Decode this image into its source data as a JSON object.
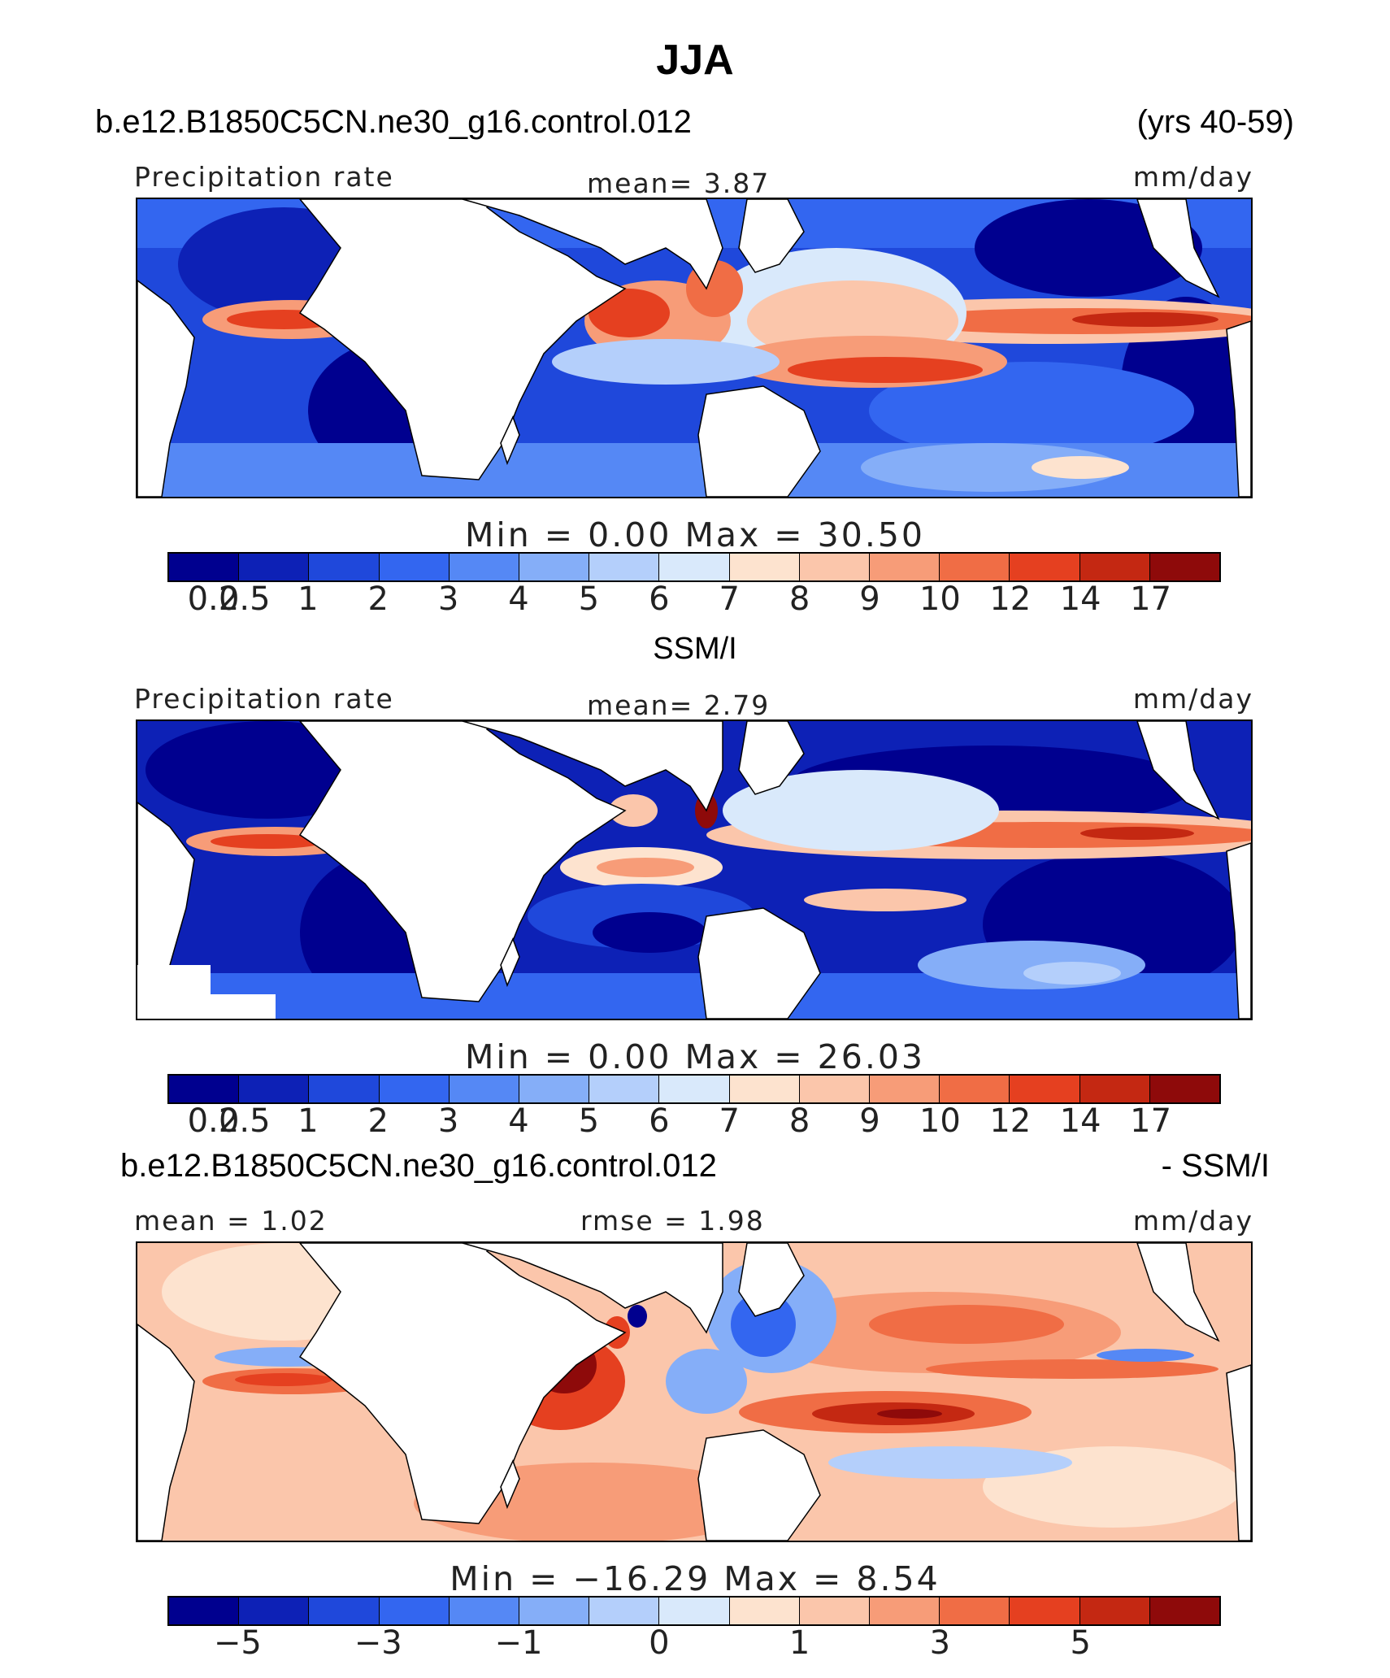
{
  "season": "JJA",
  "header": {
    "case_name": "b.e12.B1850C5CN.ne30_g16.control.012",
    "years": "(yrs 40-59)"
  },
  "panels": [
    {
      "id": "model",
      "variable": "Precipitation rate",
      "stat_text": "mean=    3.87",
      "units": "mm/day",
      "minmax_text": "Min  =     0.00  Max  =    30.50",
      "colorbar": {
        "labels": [
          "0.2",
          "0.5",
          "1",
          "2",
          "3",
          "4",
          "5",
          "6",
          "7",
          "8",
          "9",
          "10",
          "12",
          "14",
          "17"
        ],
        "colors": [
          "#00008f",
          "#0d21b6",
          "#1f48db",
          "#3366f0",
          "#5588f5",
          "#85aef8",
          "#b4cffb",
          "#d9e9fb",
          "#fde3cf",
          "#fbc6ab",
          "#f79c78",
          "#f06d45",
          "#e54020",
          "#c42812",
          "#8e0a0a"
        ]
      }
    },
    {
      "id": "obs",
      "subtitle": "SSM/I",
      "variable": "Precipitation rate",
      "stat_text": "mean=    2.79",
      "units": "mm/day",
      "minmax_text": "Min  =     0.00  Max  =    26.03",
      "colorbar": {
        "labels": [
          "0.2",
          "0.5",
          "1",
          "2",
          "3",
          "4",
          "5",
          "6",
          "7",
          "8",
          "9",
          "10",
          "12",
          "14",
          "17"
        ],
        "colors": [
          "#00008f",
          "#0d21b6",
          "#1f48db",
          "#3366f0",
          "#5588f5",
          "#85aef8",
          "#b4cffb",
          "#d9e9fb",
          "#fde3cf",
          "#fbc6ab",
          "#f79c78",
          "#f06d45",
          "#e54020",
          "#c42812",
          "#8e0a0a"
        ]
      }
    },
    {
      "id": "diff",
      "case_name": "b.e12.B1850C5CN.ne30_g16.control.012",
      "case_suffix": "- SSM/I",
      "mean_text": "mean  =     1.02",
      "rmse_text": "rmse  =     1.98",
      "units": "mm/day",
      "minmax_text": "Min  = −16.29  Max  =      8.54",
      "colorbar": {
        "labels": [
          "−5",
          "−3",
          "−1",
          "0",
          "1",
          "3",
          "5"
        ],
        "colors": [
          "#00008f",
          "#0d21b6",
          "#1f48db",
          "#3366f0",
          "#5588f5",
          "#85aef8",
          "#b4cffb",
          "#d9e9fb",
          "#fde3cf",
          "#fbc6ab",
          "#f79c78",
          "#f06d45",
          "#e54020",
          "#c42812",
          "#8e0a0a"
        ]
      }
    }
  ],
  "chart_data": [
    {
      "type": "heatmap",
      "title": "JJA",
      "subtitle": "b.e12.B1850C5CN.ne30_g16.control.012 (yrs 40-59)",
      "variable": "Precipitation rate",
      "units": "mm/day",
      "mean": 3.87,
      "min": 0.0,
      "max": 30.5,
      "levels": [
        0.2,
        0.5,
        1,
        2,
        3,
        4,
        5,
        6,
        7,
        8,
        9,
        10,
        12,
        14,
        17
      ]
    },
    {
      "type": "heatmap",
      "title": "SSM/I",
      "variable": "Precipitation rate",
      "units": "mm/day",
      "mean": 2.79,
      "min": 0.0,
      "max": 26.03,
      "levels": [
        0.2,
        0.5,
        1,
        2,
        3,
        4,
        5,
        6,
        7,
        8,
        9,
        10,
        12,
        14,
        17
      ]
    },
    {
      "type": "heatmap",
      "title": "b.e12.B1850C5CN.ne30_g16.control.012 - SSM/I",
      "units": "mm/day",
      "mean": 1.02,
      "rmse": 1.98,
      "min": -16.29,
      "max": 8.54,
      "levels": [
        -5,
        -3,
        -1,
        0,
        1,
        3,
        5
      ]
    }
  ]
}
